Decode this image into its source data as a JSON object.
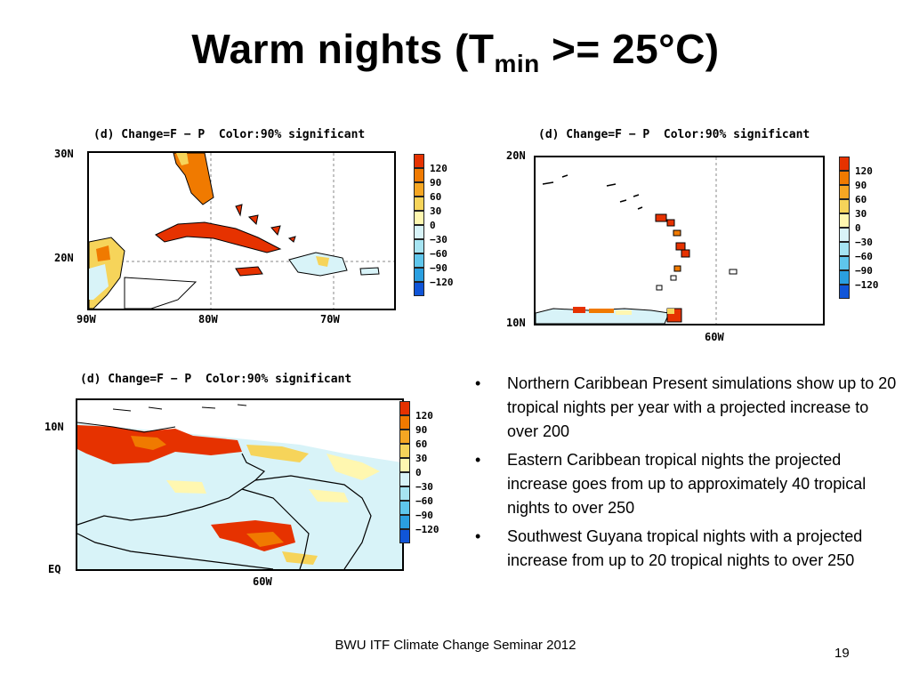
{
  "slide": {
    "title_main": "Warm nights (T",
    "title_sub": "min",
    "title_end": " >= 25°C)",
    "footer": "BWU ITF Climate Change Seminar 2012",
    "page_number": "19"
  },
  "colorbar": {
    "labels": [
      "120",
      "90",
      "60",
      "30",
      "0",
      "−30",
      "−60",
      "−90",
      "−120"
    ],
    "colors": [
      "#e63200",
      "#f07a00",
      "#f5a623",
      "#f6d45a",
      "#fff7b0",
      "#d8f3f8",
      "#a6e4f2",
      "#5fc6ec",
      "#2a9fe0",
      "#1055d8"
    ]
  },
  "maps": {
    "northern": {
      "header": "(d) Change=F − P  Color:90% significant",
      "lat_labels": [
        "30N",
        "20N"
      ],
      "lon_labels": [
        "90W",
        "80W",
        "70W"
      ]
    },
    "eastern": {
      "header": "(d) Change=F − P  Color:90% significant",
      "lat_labels": [
        "20N",
        "10N"
      ],
      "lon_labels": [
        "60W"
      ]
    },
    "guyana": {
      "header": "(d) Change=F − P  Color:90% significant",
      "lat_labels": [
        "10N",
        "EQ"
      ],
      "lon_labels": [
        "60W"
      ]
    }
  },
  "bullets": [
    "Northern Caribbean Present simulations show up to 20 tropical nights per year with a projected increase to over 200",
    "Eastern Caribbean tropical nights the projected increase goes from up to approximately 40 tropical nights to over 250",
    "Southwest Guyana tropical nights with a projected increase from up to 20 tropical nights to over 250"
  ]
}
